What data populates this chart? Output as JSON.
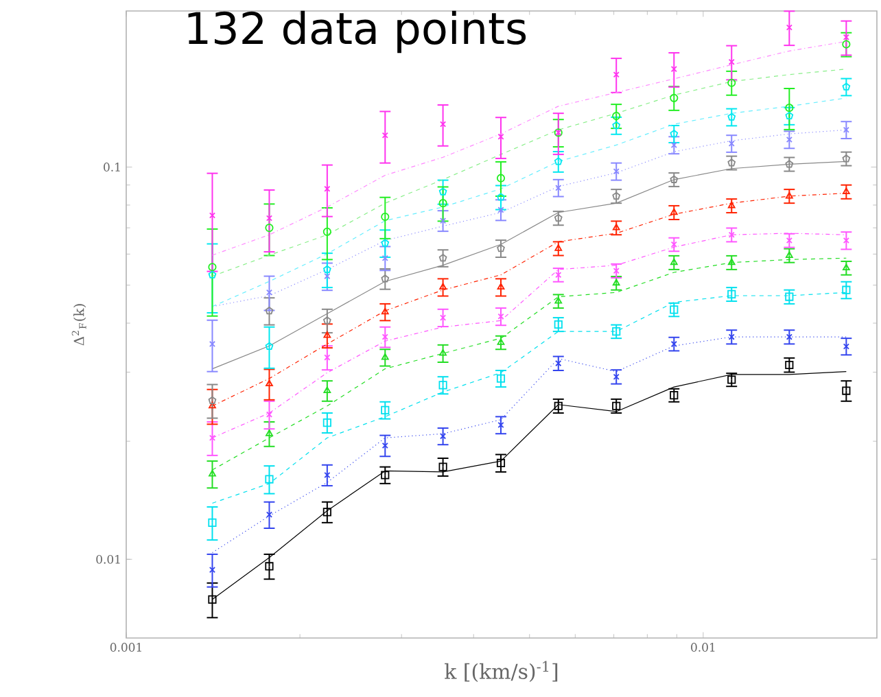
{
  "chart_data": {
    "type": "scatter",
    "title": "132 data points",
    "xlabel": "k [(km/s)$^{-1}$]",
    "ylabel": "Δ$^{2}$$_{F}$(k)",
    "log": "xy",
    "xlim": [
      0.001,
      0.02
    ],
    "ylim": [
      0.0063,
      0.25
    ],
    "xticks": [
      0.001,
      0.01
    ],
    "yticks": [
      0.01,
      0.1
    ],
    "x": [
      0.00141,
      0.00177,
      0.00223,
      0.00281,
      0.00354,
      0.00446,
      0.00561,
      0.00707,
      0.0089,
      0.0112,
      0.0141,
      0.0177
    ],
    "series": [
      {
        "color": "#000000",
        "marker": "square",
        "values": [
          0.0079,
          0.0096,
          0.0132,
          0.0164,
          0.0172,
          0.0176,
          0.0246,
          0.0246,
          0.0262,
          0.0287,
          0.0313,
          0.0269
        ],
        "errors": [
          0.0008,
          0.0007,
          0.0008,
          0.0008,
          0.0009,
          0.0009,
          0.001,
          0.001,
          0.001,
          0.0011,
          0.0013,
          0.0016
        ]
      },
      {
        "type": "line",
        "color": "#000000",
        "line_style": "solid",
        "values": [
          0.0079,
          0.0101,
          0.0133,
          0.0168,
          0.0167,
          0.0178,
          0.0248,
          0.0238,
          0.0275,
          0.0296,
          0.0296,
          0.0301
        ]
      },
      {
        "color": "#3344ee",
        "marker": "cross",
        "values": [
          0.0094,
          0.013,
          0.0164,
          0.0195,
          0.0206,
          0.022,
          0.0316,
          0.0292,
          0.0354,
          0.0369,
          0.0369,
          0.0349
        ],
        "errors": [
          0.0009,
          0.001,
          0.001,
          0.0012,
          0.001,
          0.0011,
          0.0013,
          0.0012,
          0.0014,
          0.0015,
          0.0015,
          0.0017
        ]
      },
      {
        "type": "line",
        "color": "#3344ee",
        "line_style": "dotted",
        "values": [
          0.0104,
          0.0129,
          0.0157,
          0.0204,
          0.0209,
          0.0227,
          0.0325,
          0.0301,
          0.035,
          0.0369,
          0.0369,
          0.0369
        ]
      },
      {
        "color": "#00e0ee",
        "marker": "square",
        "values": [
          0.0124,
          0.016,
          0.0223,
          0.024,
          0.0278,
          0.0289,
          0.0397,
          0.0381,
          0.0433,
          0.0474,
          0.0467,
          0.0486
        ],
        "errors": [
          0.0012,
          0.0013,
          0.0013,
          0.0012,
          0.0014,
          0.0014,
          0.0016,
          0.0015,
          0.0017,
          0.0019,
          0.0019,
          0.0024
        ]
      },
      {
        "type": "line",
        "color": "#00e0ee",
        "line_style": "dashed",
        "values": [
          0.0139,
          0.0156,
          0.0204,
          0.0231,
          0.0267,
          0.0299,
          0.0381,
          0.0381,
          0.0452,
          0.047,
          0.047,
          0.0479
        ]
      },
      {
        "color": "#22dd22",
        "marker": "triangle",
        "values": [
          0.0165,
          0.0209,
          0.0269,
          0.0327,
          0.0335,
          0.0357,
          0.0455,
          0.0506,
          0.0571,
          0.0571,
          0.0595,
          0.0553
        ],
        "errors": [
          0.0013,
          0.0015,
          0.0016,
          0.0016,
          0.0017,
          0.0014,
          0.0018,
          0.002,
          0.0023,
          0.0023,
          0.0024,
          0.0022
        ]
      },
      {
        "type": "line",
        "color": "#22dd22",
        "line_style": "dashed",
        "values": [
          0.0169,
          0.0204,
          0.0246,
          0.0306,
          0.0335,
          0.0366,
          0.0467,
          0.0479,
          0.0539,
          0.0571,
          0.0581,
          0.0586
        ]
      },
      {
        "color": "#ff55ff",
        "marker": "cross",
        "values": [
          0.0204,
          0.0234,
          0.0327,
          0.0369,
          0.0413,
          0.0416,
          0.0531,
          0.0544,
          0.0635,
          0.0672,
          0.065,
          0.065
        ],
        "errors": [
          0.002,
          0.0019,
          0.0023,
          0.0022,
          0.0021,
          0.0021,
          0.0021,
          0.0022,
          0.0025,
          0.0027,
          0.0026,
          0.0033
        ]
      },
      {
        "type": "line",
        "color": "#ff55ff",
        "line_style": "dashdot",
        "values": [
          0.0204,
          0.0236,
          0.0299,
          0.036,
          0.0391,
          0.0406,
          0.0548,
          0.0562,
          0.0625,
          0.0672,
          0.0678,
          0.0672
        ]
      },
      {
        "color": "#ff2200",
        "marker": "triangle",
        "values": [
          0.0246,
          0.028,
          0.0372,
          0.0427,
          0.0494,
          0.0494,
          0.062,
          0.07,
          0.0766,
          0.0797,
          0.0843,
          0.0865
        ],
        "errors": [
          0.0025,
          0.0025,
          0.0026,
          0.0021,
          0.0025,
          0.0025,
          0.0025,
          0.0028,
          0.0031,
          0.0032,
          0.0034,
          0.0035
        ]
      },
      {
        "type": "line",
        "color": "#ff2200",
        "line_style": "dashdot",
        "values": [
          0.0246,
          0.0289,
          0.0354,
          0.043,
          0.0486,
          0.0531,
          0.0645,
          0.0678,
          0.0758,
          0.0809,
          0.0843,
          0.0858
        ]
      },
      {
        "color": "#888888",
        "values": [
          0.0254,
          0.043,
          0.0406,
          0.0519,
          0.0586,
          0.062,
          0.0741,
          0.0843,
          0.0929,
          0.1025,
          0.1017,
          0.105
        ],
        "errors": [
          0.0025,
          0.0034,
          0.0028,
          0.0031,
          0.0029,
          0.0031,
          0.003,
          0.0034,
          0.0037,
          0.0041,
          0.0041,
          0.0042
        ]
      },
      {
        "type": "line",
        "color": "#888888",
        "line_style": "solid",
        "values": [
          0.0306,
          0.035,
          0.0423,
          0.0511,
          0.0562,
          0.0635,
          0.0766,
          0.0809,
          0.0929,
          0.0991,
          0.1017,
          0.1033
        ]
      },
      {
        "color": "#8888ff",
        "marker": "cross",
        "values": [
          0.0354,
          0.0479,
          0.0527,
          0.0586,
          0.073,
          0.0778,
          0.0885,
          0.0975,
          0.1138,
          0.1148,
          0.1175,
          0.1244
        ],
        "errors": [
          0.0053,
          0.0048,
          0.0042,
          0.0041,
          0.0044,
          0.0047,
          0.0044,
          0.0049,
          0.0057,
          0.0057,
          0.0059,
          0.0062
        ]
      },
      {
        "type": "line",
        "color": "#8888ff",
        "line_style": "dotted",
        "values": [
          0.0441,
          0.047,
          0.0548,
          0.065,
          0.0707,
          0.0766,
          0.0892,
          0.0967,
          0.1094,
          0.1167,
          0.1215,
          0.1244
        ]
      },
      {
        "color": "#00e8f0",
        "values": [
          0.0531,
          0.0349,
          0.0548,
          0.064,
          0.0865,
          0.0838,
          0.1033,
          0.1276,
          0.1215,
          0.1341,
          0.135,
          0.1601
        ],
        "errors": [
          0.0106,
          0.0042,
          0.0055,
          0.0051,
          0.0061,
          0.0059,
          0.0062,
          0.0064,
          0.0061,
          0.0067,
          0.0068,
          0.008
        ]
      },
      {
        "type": "line",
        "color": "#66eeff",
        "line_style": "dashed",
        "values": [
          0.0441,
          0.0511,
          0.0601,
          0.073,
          0.0791,
          0.088,
          0.1033,
          0.1138,
          0.1286,
          0.1371,
          0.1429,
          0.15
        ]
      },
      {
        "color": "#22ee22",
        "marker": "circle",
        "values": [
          0.0556,
          0.07,
          0.0684,
          0.0747,
          0.0809,
          0.0937,
          0.1224,
          0.135,
          0.15,
          0.164,
          0.1416,
          0.2056
        ],
        "errors": [
          0.0139,
          0.0105,
          0.0103,
          0.009,
          0.0081,
          0.0094,
          0.0098,
          0.0095,
          0.0105,
          0.0115,
          0.017,
          0.0144
        ]
      },
      {
        "type": "line",
        "color": "#88ee88",
        "line_style": "dashed",
        "values": [
          0.0527,
          0.0596,
          0.0672,
          0.0809,
          0.0929,
          0.1077,
          0.1244,
          0.1371,
          0.1526,
          0.1652,
          0.1721,
          0.1778
        ]
      },
      {
        "color": "#ff33ee",
        "marker": "cross",
        "values": [
          0.0753,
          0.0741,
          0.088,
          0.1205,
          0.1286,
          0.1195,
          0.1224,
          0.1721,
          0.1778,
          0.1854,
          0.227,
          0.2143
        ],
        "errors": [
          0.0211,
          0.0133,
          0.0132,
          0.0181,
          0.0154,
          0.0143,
          0.0147,
          0.0172,
          0.0178,
          0.0185,
          0.0227,
          0.0214
        ]
      },
      {
        "type": "line",
        "color": "#ff88ff",
        "line_style": "dashdot",
        "values": [
          0.0596,
          0.0672,
          0.0791,
          0.0953,
          0.1059,
          0.1215,
          0.1429,
          0.1549,
          0.1679,
          0.1823,
          0.1977,
          0.2091
        ]
      }
    ]
  }
}
